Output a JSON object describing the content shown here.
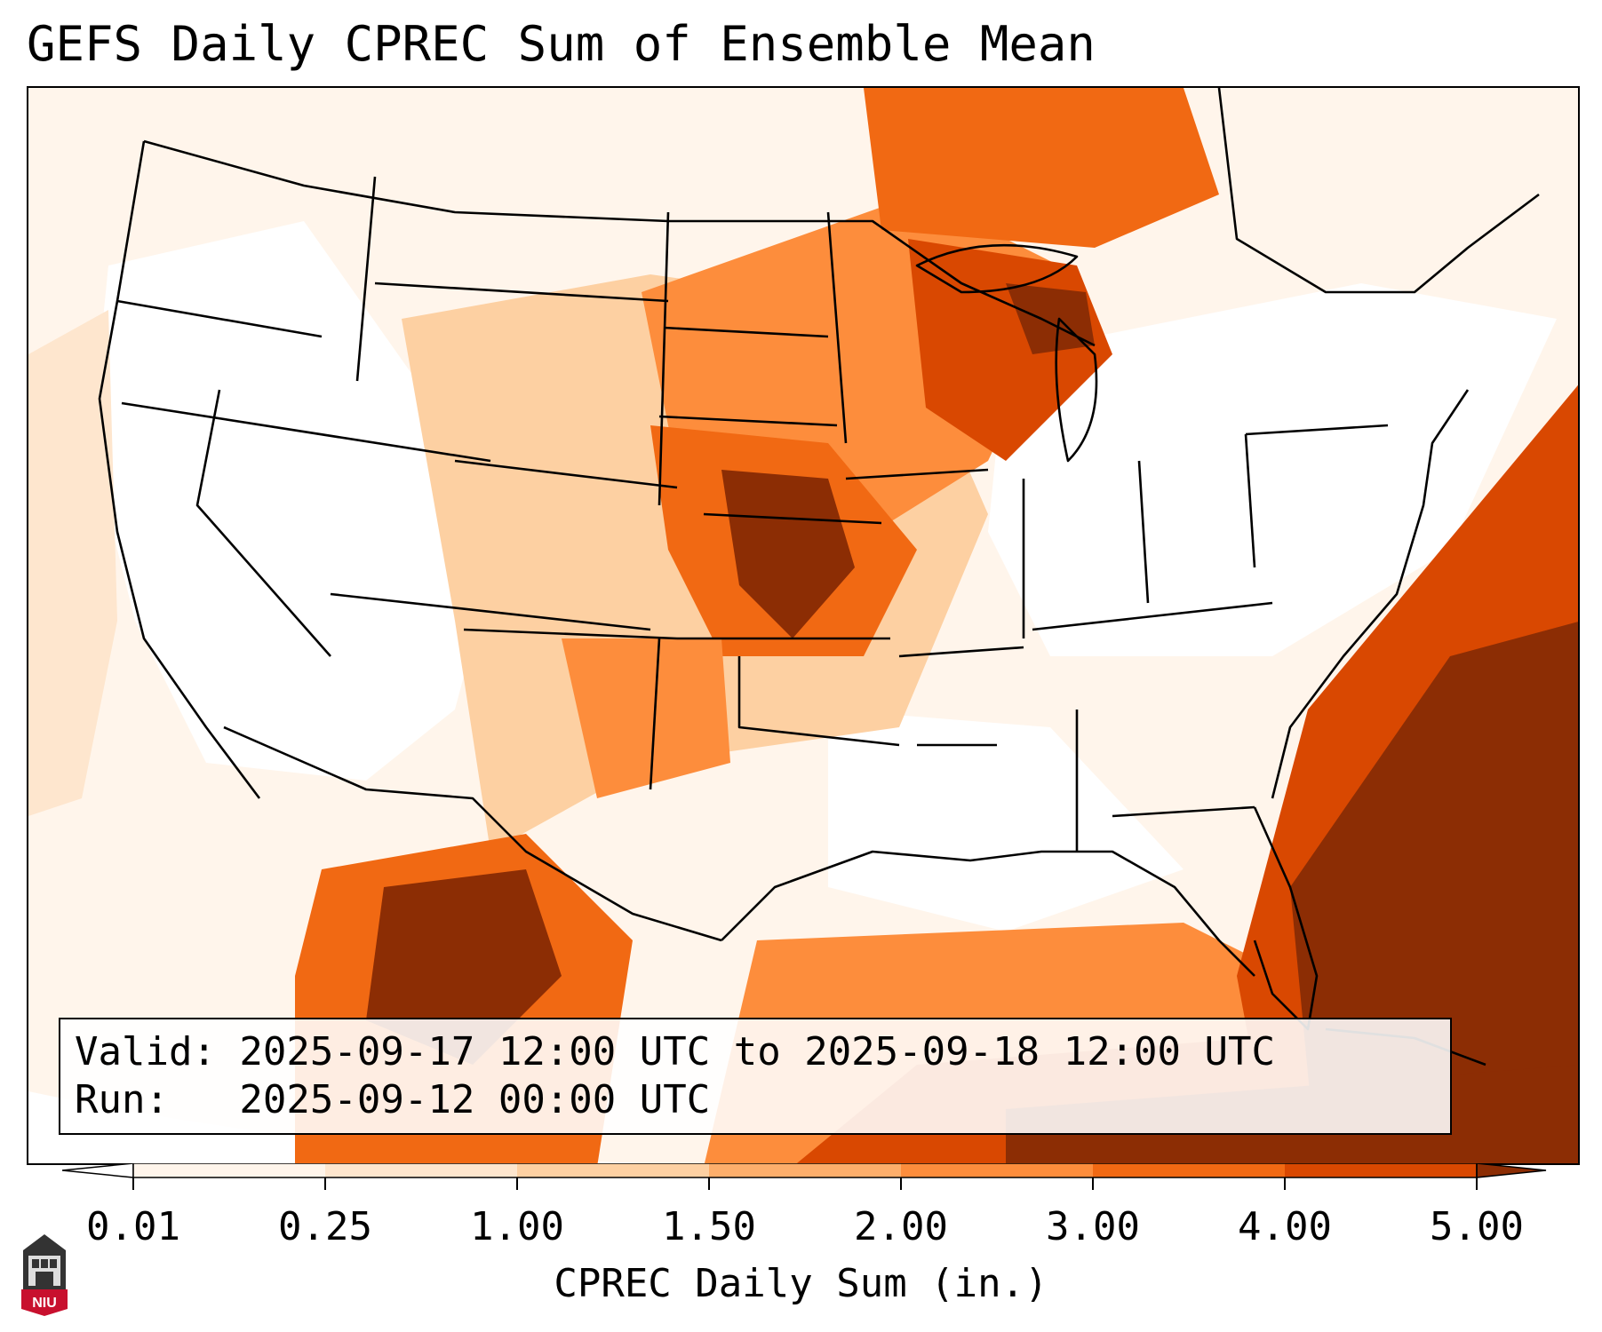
{
  "title": "GEFS Daily CPREC Sum of Ensemble Mean",
  "info": {
    "valid_line": "Valid: 2025-09-17 12:00 UTC to 2025-09-18 12:00 UTC",
    "run_line": "Run:   2025-09-12 00:00 UTC"
  },
  "colorbar": {
    "label": "CPREC Daily Sum (in.)",
    "ticks": [
      "0.01",
      "0.25",
      "1.00",
      "1.50",
      "2.00",
      "3.00",
      "4.00",
      "5.00"
    ],
    "colors": [
      "#fff5eb",
      "#fee6ce",
      "#fdd0a2",
      "#fdae6b",
      "#fd8d3c",
      "#f16913",
      "#d94801",
      "#8c2d04"
    ],
    "extend_low_color": "#ffffff",
    "extend_high_color": "#8c2d04"
  },
  "map": {
    "projection": "Lambert Conformal (CONUS)",
    "max_color": "#8c2d04",
    "high_color": "#d94801",
    "mid_color": "#f16913",
    "low_color": "#fdd0a2",
    "trace_color": "#fff5eb"
  },
  "logo": {
    "text": "NIU"
  }
}
